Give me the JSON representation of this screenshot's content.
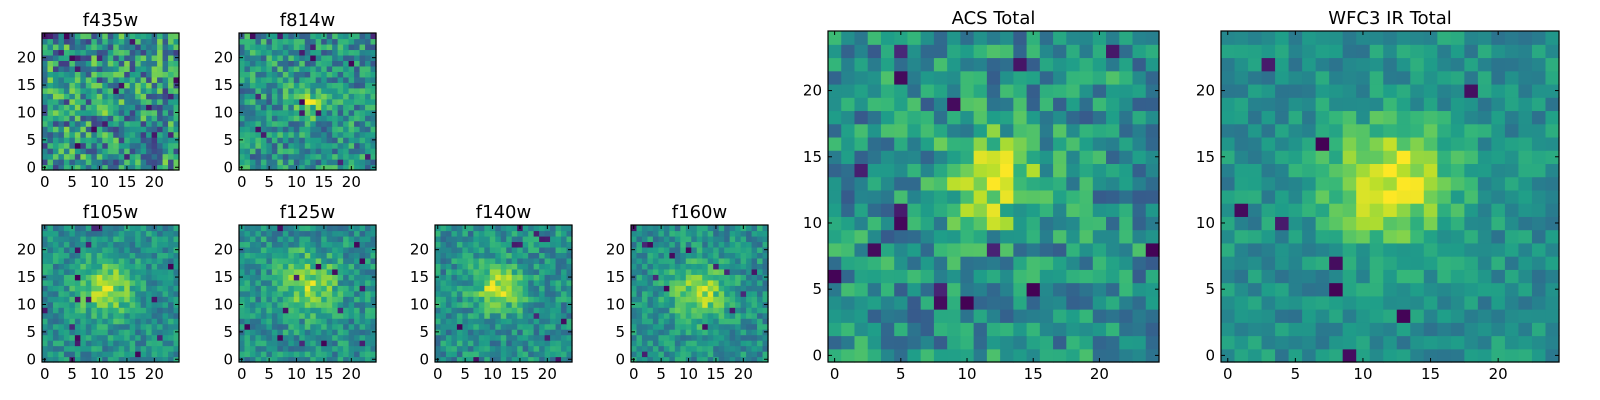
{
  "chart_data": [
    {
      "type": "heatmap",
      "id": "f435w",
      "title": "f435w",
      "xticks": [
        0,
        5,
        10,
        15,
        20
      ],
      "yticks": [
        0,
        5,
        10,
        15,
        20
      ],
      "grid_size": 25,
      "xlim": [
        0,
        25
      ],
      "ylim": [
        0,
        25
      ],
      "colormap": "viridis",
      "peak": [
        12,
        12
      ],
      "peak_amplitude": 0.05,
      "noise": 0.32,
      "blob_sigma": 3.0
    },
    {
      "type": "heatmap",
      "id": "f814w",
      "title": "f814w",
      "xticks": [
        0,
        5,
        10,
        15,
        20
      ],
      "yticks": [
        0,
        5,
        10,
        15,
        20
      ],
      "grid_size": 25,
      "xlim": [
        0,
        25
      ],
      "ylim": [
        0,
        25
      ],
      "colormap": "viridis",
      "peak": [
        12,
        12
      ],
      "peak_amplitude": 0.35,
      "noise": 0.24,
      "blob_sigma": 2.0
    },
    {
      "type": "heatmap",
      "id": "f105w",
      "title": "f105w",
      "xticks": [
        0,
        5,
        10,
        15,
        20
      ],
      "yticks": [
        0,
        5,
        10,
        15,
        20
      ],
      "grid_size": 25,
      "xlim": [
        0,
        25
      ],
      "ylim": [
        0,
        25
      ],
      "colormap": "viridis",
      "peak": [
        11,
        13
      ],
      "peak_amplitude": 0.38,
      "noise": 0.16,
      "blob_sigma": 3.5
    },
    {
      "type": "heatmap",
      "id": "f125w",
      "title": "f125w",
      "xticks": [
        0,
        5,
        10,
        15,
        20
      ],
      "yticks": [
        0,
        5,
        10,
        15,
        20
      ],
      "grid_size": 25,
      "xlim": [
        0,
        25
      ],
      "ylim": [
        0,
        25
      ],
      "colormap": "viridis",
      "peak": [
        12,
        14
      ],
      "peak_amplitude": 0.32,
      "noise": 0.18,
      "blob_sigma": 3.8
    },
    {
      "type": "heatmap",
      "id": "f140w",
      "title": "f140w",
      "xticks": [
        0,
        5,
        10,
        15,
        20
      ],
      "yticks": [
        0,
        5,
        10,
        15,
        20
      ],
      "grid_size": 25,
      "xlim": [
        0,
        25
      ],
      "ylim": [
        0,
        25
      ],
      "colormap": "viridis",
      "peak": [
        11,
        13
      ],
      "peak_amplitude": 0.38,
      "noise": 0.18,
      "blob_sigma": 3.0
    },
    {
      "type": "heatmap",
      "id": "f160w",
      "title": "f160w",
      "xticks": [
        0,
        5,
        10,
        15,
        20
      ],
      "yticks": [
        0,
        5,
        10,
        15,
        20
      ],
      "grid_size": 25,
      "xlim": [
        0,
        25
      ],
      "ylim": [
        0,
        25
      ],
      "colormap": "viridis",
      "peak": [
        12,
        12
      ],
      "peak_amplitude": 0.36,
      "noise": 0.16,
      "blob_sigma": 3.6
    },
    {
      "type": "heatmap",
      "id": "acs-total",
      "title": "ACS Total",
      "xticks": [
        0,
        5,
        10,
        15,
        20
      ],
      "yticks": [
        0,
        5,
        10,
        15,
        20
      ],
      "grid_size": 25,
      "xlim": [
        0,
        25
      ],
      "ylim": [
        0,
        25
      ],
      "colormap": "viridis",
      "peak": [
        12,
        13
      ],
      "peak_amplitude": 0.4,
      "noise": 0.22,
      "blob_sigma": 2.6
    },
    {
      "type": "heatmap",
      "id": "wfc3-ir-total",
      "title": "WFC3 IR Total",
      "xticks": [
        0,
        5,
        10,
        15,
        20
      ],
      "yticks": [
        0,
        5,
        10,
        15,
        20
      ],
      "grid_size": 25,
      "xlim": [
        0,
        25
      ],
      "ylim": [
        0,
        25
      ],
      "colormap": "viridis",
      "peak": [
        12,
        13
      ],
      "peak_amplitude": 0.48,
      "noise": 0.13,
      "blob_sigma": 3.2
    }
  ],
  "colors": {
    "viridis": [
      "#440154",
      "#482878",
      "#3e4989",
      "#31688e",
      "#26828e",
      "#1f9e89",
      "#35b779",
      "#6ece58",
      "#b5de2b",
      "#fde725"
    ],
    "axis": "#000000",
    "background": "#ffffff"
  }
}
